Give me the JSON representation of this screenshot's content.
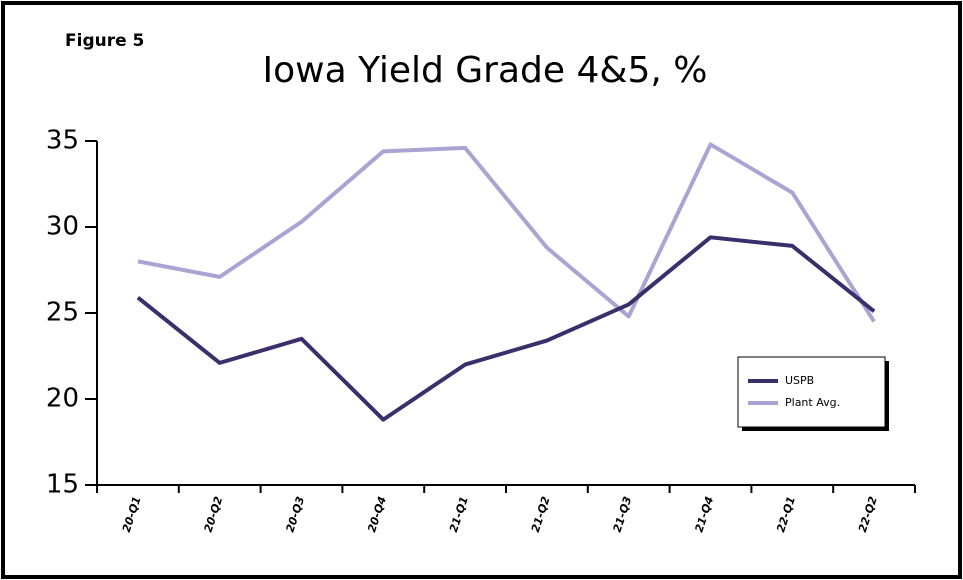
{
  "figure_label": "Figure 5",
  "chart_data": {
    "type": "line",
    "title": "Iowa Yield Grade 4&5, %",
    "categories": [
      "20-Q1",
      "20-Q2",
      "20-Q3",
      "20-Q4",
      "21-Q1",
      "21-Q2",
      "21-Q3",
      "21-Q4",
      "22-Q1",
      "22-Q2"
    ],
    "series": [
      {
        "name": "USPB",
        "color": "#3b2f6b",
        "values": [
          25.9,
          22.1,
          23.5,
          18.8,
          22.0,
          23.4,
          25.5,
          29.4,
          28.9,
          25.1
        ]
      },
      {
        "name": "Plant Avg.",
        "color": "#aaa4d2",
        "values": [
          28.0,
          27.1,
          30.3,
          34.4,
          34.6,
          28.8,
          24.8,
          34.8,
          32.0,
          24.5
        ]
      }
    ],
    "ylim": [
      15,
      35
    ],
    "yticks": [
      15,
      20,
      25,
      30,
      35
    ],
    "legend": "lower right",
    "grid": false
  }
}
